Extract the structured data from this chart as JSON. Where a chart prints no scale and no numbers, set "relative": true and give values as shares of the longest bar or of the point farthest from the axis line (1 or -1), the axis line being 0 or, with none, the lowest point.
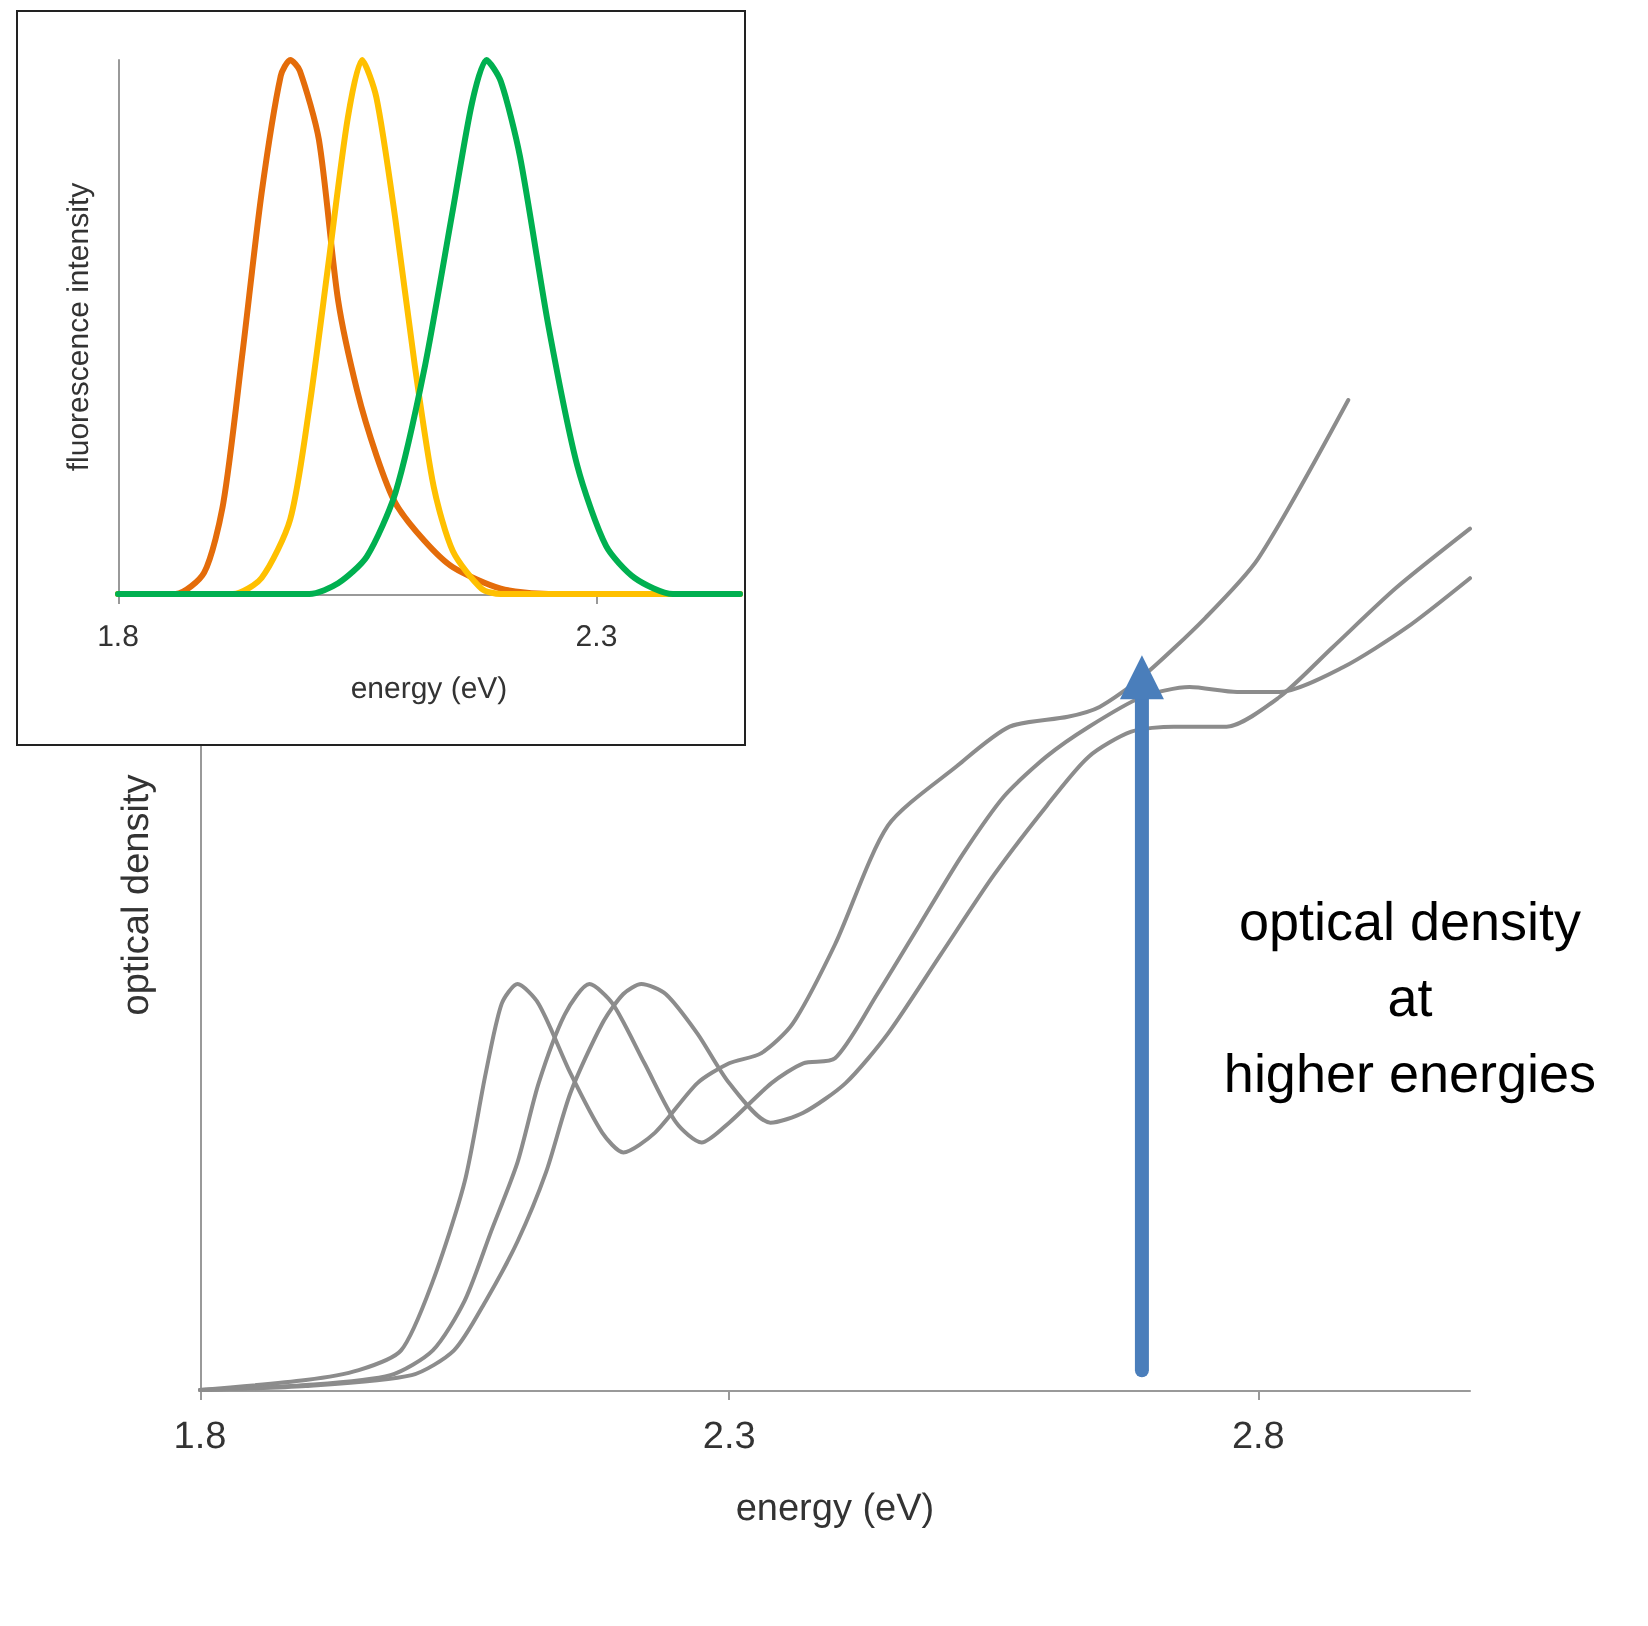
{
  "chart_data": [
    {
      "type": "line",
      "xlabel": "energy (eV)",
      "ylabel": "fluorescence intensity",
      "relative": true,
      "xlim": [
        1.8,
        2.45
      ],
      "xticks": [
        1.8,
        2.3
      ],
      "grid": false,
      "marker": "none",
      "line_style": "solid",
      "series": [
        {
          "color": "#e46c0a",
          "x": [
            1.8,
            1.86,
            1.89,
            1.91,
            1.93,
            1.95,
            1.97,
            1.98,
            1.99,
            2.01,
            2.03,
            2.05,
            2.07,
            2.09,
            2.12,
            2.15,
            2.2,
            2.25,
            2.45
          ],
          "values": [
            0,
            0,
            0.04,
            0.17,
            0.45,
            0.75,
            0.97,
            1,
            0.98,
            0.85,
            0.55,
            0.38,
            0.26,
            0.17,
            0.1,
            0.05,
            0.01,
            0,
            0
          ]
        },
        {
          "color": "#ffc000",
          "x": [
            1.8,
            1.92,
            1.95,
            1.98,
            2.0,
            2.02,
            2.04,
            2.055,
            2.07,
            2.09,
            2.11,
            2.13,
            2.15,
            2.18,
            2.2,
            2.45
          ],
          "values": [
            0,
            0,
            0.03,
            0.14,
            0.35,
            0.62,
            0.89,
            1,
            0.93,
            0.7,
            0.43,
            0.2,
            0.08,
            0.01,
            0,
            0
          ]
        },
        {
          "color": "#00b050",
          "x": [
            1.8,
            2.0,
            2.03,
            2.06,
            2.09,
            2.12,
            2.15,
            2.17,
            2.185,
            2.2,
            2.22,
            2.25,
            2.28,
            2.31,
            2.34,
            2.38,
            2.45
          ],
          "values": [
            0,
            0,
            0.02,
            0.07,
            0.19,
            0.42,
            0.72,
            0.92,
            1,
            0.96,
            0.82,
            0.5,
            0.24,
            0.09,
            0.03,
            0,
            0
          ]
        }
      ]
    },
    {
      "type": "line",
      "xlabel": "energy (eV)",
      "ylabel": "optical density",
      "relative": true,
      "xlim": [
        1.8,
        3.0
      ],
      "xticks": [
        1.8,
        2.3,
        2.8
      ],
      "grid": false,
      "marker": "none",
      "line_style": "solid",
      "annotations": [
        "optical density\nat\nhigher energies"
      ],
      "series": [
        {
          "color": "#8c8c8c",
          "x": [
            1.8,
            1.9,
            1.95,
            1.99,
            2.02,
            2.05,
            2.07,
            2.085,
            2.1,
            2.12,
            2.15,
            2.18,
            2.2,
            2.23,
            2.27,
            2.3,
            2.33,
            2.36,
            2.4,
            2.45,
            2.515,
            2.565,
            2.62,
            2.65,
            2.69,
            2.75,
            2.8,
            2.885
          ],
          "values": [
            0,
            0.01,
            0.02,
            0.04,
            0.11,
            0.21,
            0.32,
            0.39,
            0.41,
            0.39,
            0.32,
            0.26,
            0.24,
            0.26,
            0.31,
            0.33,
            0.34,
            0.37,
            0.45,
            0.57,
            0.63,
            0.67,
            0.68,
            0.69,
            0.72,
            0.78,
            0.84,
            1
          ]
        },
        {
          "color": "#8c8c8c",
          "x": [
            1.8,
            1.9,
            1.98,
            2.02,
            2.05,
            2.075,
            2.1,
            2.12,
            2.145,
            2.168,
            2.19,
            2.22,
            2.25,
            2.274,
            2.3,
            2.34,
            2.37,
            2.4,
            2.44,
            2.48,
            2.52,
            2.56,
            2.6,
            2.64,
            2.69,
            2.735,
            2.78,
            2.82,
            2.88,
            2.94,
            3.0
          ],
          "values": [
            0,
            0.005,
            0.015,
            0.04,
            0.09,
            0.16,
            0.23,
            0.31,
            0.38,
            0.41,
            0.39,
            0.33,
            0.27,
            0.25,
            0.27,
            0.31,
            0.33,
            0.335,
            0.4,
            0.47,
            0.54,
            0.6,
            0.64,
            0.67,
            0.7,
            0.71,
            0.705,
            0.705,
            0.73,
            0.77,
            0.82
          ]
        },
        {
          "color": "#4a7ebb",
          "marker": "triangle",
          "x": [
            2.69,
            2.69
          ],
          "values": [
            0.02,
            0.72
          ]
        },
        {
          "color": "#8c8c8c",
          "x": [
            1.8,
            1.9,
            2.0,
            2.04,
            2.07,
            2.1,
            2.127,
            2.15,
            2.18,
            2.2,
            2.217,
            2.24,
            2.27,
            2.3,
            2.339,
            2.37,
            2.41,
            2.45,
            2.5,
            2.55,
            2.6,
            2.64,
            2.68,
            2.72,
            2.77,
            2.82,
            2.87,
            2.93,
            3.0
          ],
          "values": [
            0,
            0.004,
            0.015,
            0.04,
            0.09,
            0.15,
            0.22,
            0.3,
            0.37,
            0.4,
            0.41,
            0.4,
            0.36,
            0.31,
            0.27,
            0.28,
            0.31,
            0.36,
            0.44,
            0.52,
            0.59,
            0.64,
            0.665,
            0.67,
            0.67,
            0.7,
            0.75,
            0.81,
            0.87
          ]
        }
      ]
    }
  ]
}
